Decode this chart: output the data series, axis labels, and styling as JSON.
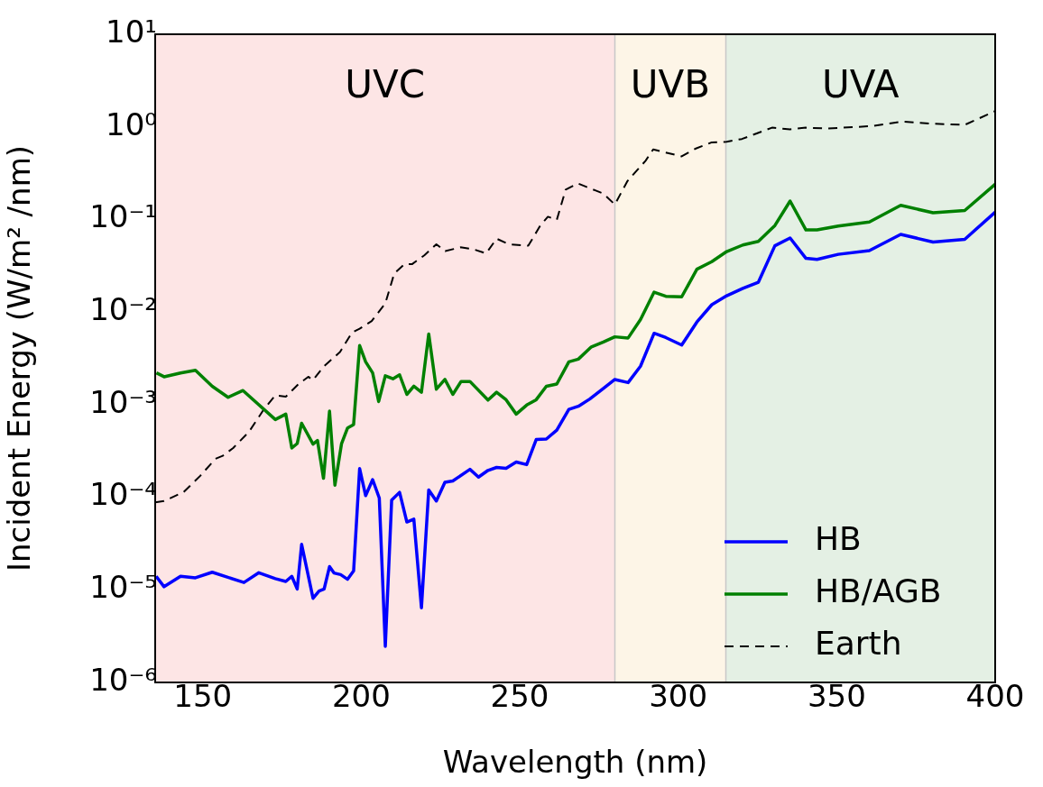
{
  "chart_data": {
    "type": "line",
    "xlabel": "Wavelength (nm)",
    "ylabel": "Incident Energy (W/m² /nm)",
    "log": "y",
    "ref_lines": [
      {
        "axis": "x",
        "value": 280,
        "color": "#c8c8c8"
      },
      {
        "axis": "x",
        "value": 315,
        "color": "#c8c8c8"
      }
    ],
    "legend": "bottom right",
    "line_style": "solid",
    "marker": "none",
    "xlim": [
      135,
      400
    ],
    "xticks": [
      150,
      200,
      250,
      300,
      350,
      400
    ],
    "ylim": [
      1e-06,
      10
    ],
    "yticks": [
      {
        "value": 1e-06,
        "label": "10⁻⁶"
      },
      {
        "value": 1e-05,
        "label": "10⁻⁵"
      },
      {
        "value": 0.0001,
        "label": "10⁻⁴"
      },
      {
        "value": 0.001,
        "label": "10⁻³"
      },
      {
        "value": 0.01,
        "label": "10⁻²"
      },
      {
        "value": 0.1,
        "label": "10⁻¹"
      },
      {
        "value": 1,
        "label": "10⁰"
      },
      {
        "value": 10,
        "label": "10¹"
      }
    ],
    "bands": [
      {
        "axis": "x",
        "from": 135,
        "to": 280,
        "label": "UVC",
        "color": "#fde5e5"
      },
      {
        "axis": "x",
        "from": 280,
        "to": 315,
        "label": "UVB",
        "color": "#fdf5e7"
      },
      {
        "axis": "x",
        "from": 315,
        "to": 400,
        "label": "UVA",
        "color": "#e4f0e4"
      }
    ],
    "series": [
      {
        "name": "HB",
        "color": "#0000ff",
        "x": [
          135.3,
          137.8,
          143,
          147.7,
          153,
          163,
          167.7,
          172.9,
          176.2,
          178.1,
          179.8,
          181.2,
          184.8,
          186.7,
          188.3,
          190,
          191.4,
          193.5,
          195.7,
          197.6,
          199.5,
          201.4,
          203.6,
          205.7,
          207.6,
          209.6,
          212.1,
          214.4,
          216.6,
          219,
          221.3,
          223.7,
          226.4,
          228.9,
          234.3,
          237,
          240,
          242.7,
          245.7,
          248.9,
          252.2,
          255.2,
          258.4,
          261.7,
          265.5,
          268.5,
          272.1,
          276.4,
          280,
          284.2,
          288.1,
          292.4,
          296.1,
          301.1,
          305.9,
          310.6,
          315.3,
          320.4,
          325.3,
          330.5,
          335.3,
          340.3,
          343.8,
          350.5,
          360.3,
          370.2,
          380.4,
          390.4,
          400
        ],
        "values": [
          1.4e-05,
          1.08e-05,
          1.4e-05,
          1.35e-05,
          1.55e-05,
          1.2e-05,
          1.53e-05,
          1.32e-05,
          1.23e-05,
          1.4e-05,
          1.02e-05,
          3.1e-05,
          8.1e-06,
          9.7e-06,
          1.02e-05,
          1.78e-05,
          1.52e-05,
          1.46e-05,
          1.3e-05,
          1.6e-05,
          0.000204,
          0.000104,
          0.000155,
          9.8e-05,
          2.45e-06,
          9.3e-05,
          0.000113,
          5.4e-05,
          5.8e-05,
          6.4e-06,
          0.00012,
          9.1e-05,
          0.000145,
          0.00015,
          0.0002,
          0.000165,
          0.000195,
          0.00021,
          0.000205,
          0.00024,
          0.000225,
          0.00042,
          0.000425,
          0.00053,
          0.00089,
          0.00096,
          0.00115,
          0.0015,
          0.00187,
          0.00173,
          0.0026,
          0.0059,
          0.0053,
          0.0044,
          0.0078,
          0.012,
          0.015,
          0.018,
          0.021,
          0.052,
          0.063,
          0.038,
          0.037,
          0.042,
          0.046,
          0.069,
          0.057,
          0.061,
          0.12
        ]
      },
      {
        "name": "HB/AGB",
        "color": "#008000",
        "x": [
          135.4,
          137.8,
          143,
          147.7,
          153,
          158,
          162.7,
          172.9,
          176.2,
          178.1,
          179.8,
          181.2,
          184.8,
          186.2,
          188.1,
          190,
          191.7,
          193.8,
          195.7,
          197.6,
          199.5,
          201.4,
          203.6,
          205.5,
          207.6,
          210,
          212.1,
          214.4,
          216.6,
          219,
          221.3,
          223.7,
          226.4,
          228.9,
          231.5,
          234.3,
          240,
          242.7,
          245.7,
          248.9,
          252.2,
          255.2,
          258.4,
          261.7,
          265.5,
          268.5,
          272.6,
          276.4,
          280,
          284.2,
          288.1,
          292.4,
          296.1,
          301.1,
          305.9,
          310.6,
          315.3,
          320.4,
          325.3,
          330.5,
          335.3,
          340.3,
          343.8,
          350.5,
          360.3,
          370.2,
          380.4,
          390.4,
          400
        ],
        "values": [
          0.0022,
          0.002,
          0.0022,
          0.00235,
          0.00158,
          0.0012,
          0.00142,
          0.00069,
          0.00079,
          0.00034,
          0.00038,
          0.00063,
          0.000375,
          0.00041,
          0.00016,
          0.00085,
          0.000135,
          0.00038,
          0.00056,
          0.00061,
          0.00435,
          0.0029,
          0.0022,
          0.00108,
          0.00205,
          0.0019,
          0.0021,
          0.00129,
          0.00158,
          0.00136,
          0.0058,
          0.00147,
          0.00187,
          0.00129,
          0.00178,
          0.00178,
          0.00112,
          0.00136,
          0.00113,
          0.00079,
          0.00099,
          0.00113,
          0.00158,
          0.00167,
          0.0029,
          0.0031,
          0.0042,
          0.00475,
          0.0054,
          0.00525,
          0.0083,
          0.0164,
          0.0148,
          0.0146,
          0.029,
          0.035,
          0.045,
          0.053,
          0.058,
          0.086,
          0.158,
          0.077,
          0.077,
          0.085,
          0.094,
          0.142,
          0.118,
          0.125,
          0.24
        ]
      },
      {
        "name": "Earth",
        "color": "#000000",
        "line_style": "dashed",
        "x": [
          135,
          137.8,
          144,
          149.2,
          154,
          156.3,
          159.6,
          164.6,
          169.1,
          172.9,
          176.2,
          180,
          183.3,
          184.8,
          188.1,
          193.3,
          197.1,
          199.5,
          203.3,
          207.6,
          210.4,
          213.7,
          216.1,
          219.9,
          223.7,
          226.5,
          231.3,
          235.1,
          239.4,
          242.7,
          246.5,
          252.7,
          256.5,
          258.9,
          261.7,
          264.5,
          268.3,
          274,
          276.4,
          280,
          284,
          289.7,
          292.1,
          301.1,
          305.4,
          310.6,
          315.3,
          320.1,
          329.6,
          335.3,
          340.3,
          347.2,
          356.7,
          361.4,
          370.4,
          380.4,
          390.4,
          400
        ],
        "values": [
          8.8e-05,
          9.1e-05,
          0.000114,
          0.00017,
          0.00026,
          0.00028,
          0.00034,
          0.00051,
          0.00087,
          0.00126,
          0.00122,
          0.00164,
          0.002,
          0.00184,
          0.00257,
          0.0037,
          0.006,
          0.0066,
          0.008,
          0.0124,
          0.026,
          0.033,
          0.033,
          0.041,
          0.054,
          0.0455,
          0.05,
          0.048,
          0.043,
          0.062,
          0.054,
          0.052,
          0.086,
          0.107,
          0.099,
          0.21,
          0.245,
          0.205,
          0.19,
          0.145,
          0.26,
          0.43,
          0.57,
          0.48,
          0.58,
          0.68,
          0.69,
          0.74,
          0.98,
          0.94,
          0.98,
          0.96,
          1.0,
          1.02,
          1.14,
          1.08,
          1.05,
          1.48
        ]
      }
    ]
  }
}
